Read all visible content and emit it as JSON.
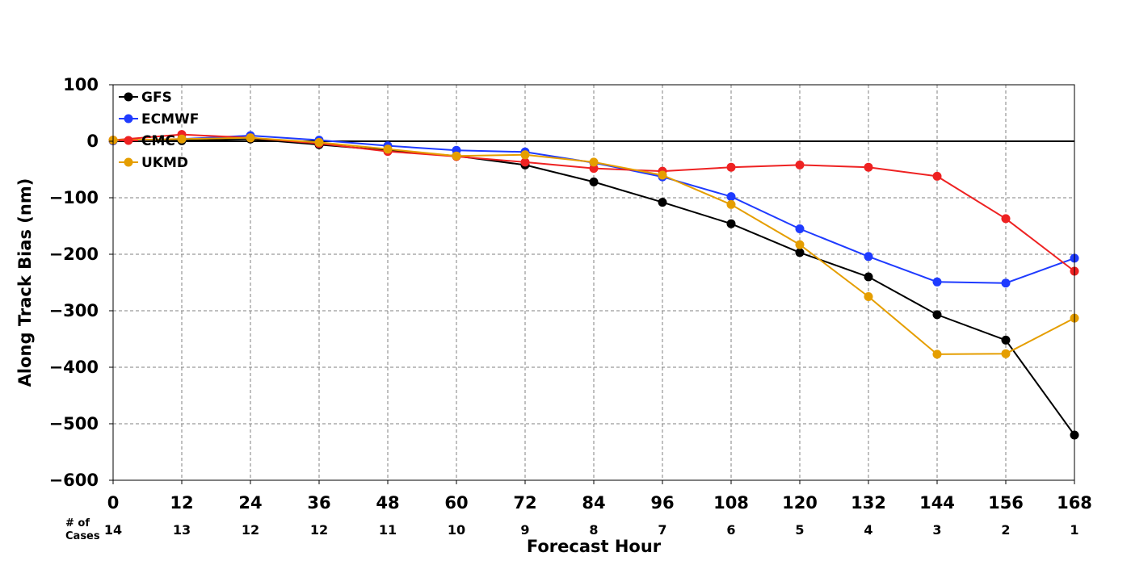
{
  "chart_data": {
    "type": "line",
    "xlabel": "Forecast Hour",
    "ylabel": "Along Track Bias (nm)",
    "x": [
      0,
      12,
      24,
      36,
      48,
      60,
      72,
      84,
      96,
      108,
      120,
      132,
      144,
      156,
      168
    ],
    "xlim": [
      0,
      168
    ],
    "ylim": [
      -600,
      100
    ],
    "yticks": [
      100,
      0,
      -100,
      -200,
      -300,
      -400,
      -500,
      -600
    ],
    "ytick_labels": [
      "100",
      "0",
      "−100",
      "−200",
      "−300",
      "−400",
      "−500",
      "−600"
    ],
    "grid": true,
    "legend_position": "top-left",
    "cases_title_line1": "# of",
    "cases_title_line2": "Cases",
    "cases": [
      14,
      13,
      12,
      12,
      11,
      10,
      9,
      8,
      7,
      6,
      5,
      4,
      3,
      2,
      1
    ],
    "series": [
      {
        "name": "GFS",
        "color": "#000000",
        "values": [
          1,
          1,
          4,
          -6,
          -16,
          -26,
          -42,
          -72,
          -108,
          -146,
          -197,
          -240,
          -307,
          -352,
          -520
        ]
      },
      {
        "name": "ECMWF",
        "color": "#1f3bff",
        "values": [
          1,
          4,
          10,
          2,
          -8,
          -16,
          -19,
          -38,
          -63,
          -98,
          -155,
          -204,
          -249,
          -251,
          -207
        ]
      },
      {
        "name": "CMC",
        "color": "#ee2222",
        "values": [
          2,
          12,
          6,
          -4,
          -18,
          -27,
          -37,
          -48,
          -53,
          -46,
          -42,
          -46,
          -62,
          -137,
          -230
        ]
      },
      {
        "name": "UKMD",
        "color": "#e59e00",
        "values": [
          2,
          4,
          6,
          -2,
          -14,
          -26,
          -24,
          -37,
          -60,
          -112,
          -183,
          -275,
          -377,
          -376,
          -313
        ]
      }
    ]
  }
}
